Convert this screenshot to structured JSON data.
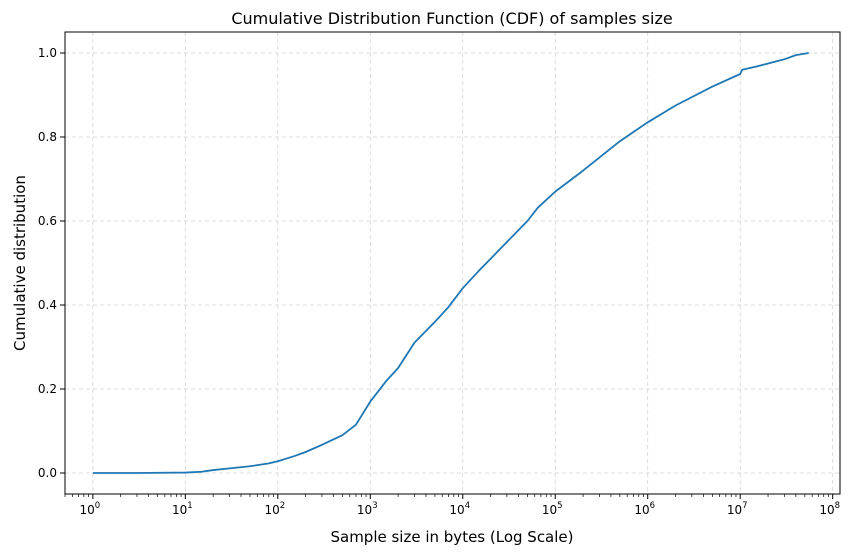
{
  "chart_data": {
    "type": "line",
    "title": "Cumulative Distribution Function (CDF) of samples size",
    "xlabel": "Sample size in bytes (Log Scale)",
    "ylabel": "Cumulative distribution",
    "x_scale": "log",
    "xlim": [
      0.5,
      120000000
    ],
    "ylim": [
      -0.05,
      1.05
    ],
    "grid": true,
    "x_ticks": [
      {
        "base": "10",
        "exp": "0",
        "value": 1
      },
      {
        "base": "10",
        "exp": "1",
        "value": 10
      },
      {
        "base": "10",
        "exp": "2",
        "value": 100
      },
      {
        "base": "10",
        "exp": "3",
        "value": 1000
      },
      {
        "base": "10",
        "exp": "4",
        "value": 10000
      },
      {
        "base": "10",
        "exp": "5",
        "value": 100000
      },
      {
        "base": "10",
        "exp": "6",
        "value": 1000000
      },
      {
        "base": "10",
        "exp": "7",
        "value": 10000000
      },
      {
        "base": "10",
        "exp": "8",
        "value": 100000000
      }
    ],
    "y_ticks": [
      {
        "label": "0.0",
        "value": 0.0
      },
      {
        "label": "0.2",
        "value": 0.2
      },
      {
        "label": "0.4",
        "value": 0.4
      },
      {
        "label": "0.6",
        "value": 0.6
      },
      {
        "label": "0.8",
        "value": 0.8
      },
      {
        "label": "1.0",
        "value": 1.0
      }
    ],
    "series": [
      {
        "color": "#1f77b4",
        "x": [
          1,
          3,
          10,
          15,
          20,
          30,
          50,
          80,
          100,
          150,
          200,
          300,
          500,
          700,
          1000,
          1500,
          2000,
          3000,
          5000,
          7000,
          10000,
          15000,
          20000,
          30000,
          50000,
          65000,
          100000,
          200000,
          500000,
          1000000,
          2000000,
          5000000,
          10000000,
          10500000,
          15000000,
          20000000,
          30000000,
          40000000,
          55000000
        ],
        "y": [
          0.0,
          0.0,
          0.001,
          0.003,
          0.007,
          0.011,
          0.016,
          0.023,
          0.028,
          0.04,
          0.05,
          0.067,
          0.09,
          0.115,
          0.17,
          0.22,
          0.25,
          0.31,
          0.36,
          0.395,
          0.44,
          0.482,
          0.51,
          0.55,
          0.6,
          0.632,
          0.67,
          0.72,
          0.79,
          0.835,
          0.875,
          0.92,
          0.95,
          0.96,
          0.968,
          0.975,
          0.985,
          0.995,
          1.0
        ]
      }
    ]
  }
}
